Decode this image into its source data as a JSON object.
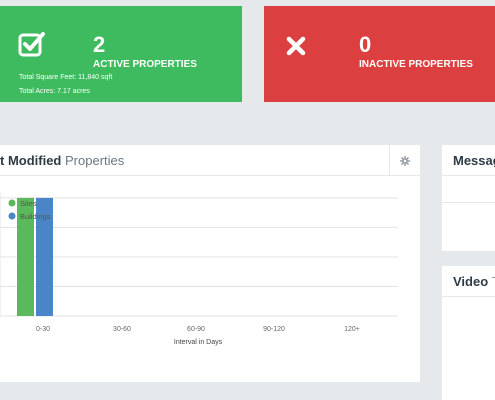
{
  "stats": {
    "active": {
      "count": "2",
      "label": "ACTIVE PROPERTIES",
      "sqft": "Total Square Feet: 11,840 sqft",
      "acres": "Total Acres: 7.17 acres",
      "color": "#3dbb5e",
      "icon": "checkbox-icon"
    },
    "inactive": {
      "count": "0",
      "label": "INACTIVE PROPERTIES",
      "color": "#dc3f3f",
      "icon": "x-icon"
    }
  },
  "main_panel": {
    "title_bold": "t Modified",
    "title_light": "Properties",
    "settings_icon": "gear-icon"
  },
  "side_panels": {
    "messages_title": "Messag",
    "video_title_bold": "Video",
    "video_title_light": "T"
  },
  "chart_data": {
    "type": "bar",
    "categories": [
      "0-30",
      "30-60",
      "60-90",
      "90-120",
      "120+"
    ],
    "series": [
      {
        "name": "Sites",
        "values": [
          2,
          0,
          0,
          0,
          0
        ],
        "color": "#5cb85c"
      },
      {
        "name": "Buildings",
        "values": [
          2,
          0,
          0,
          0,
          0
        ],
        "color": "#4a86c7"
      }
    ],
    "xlabel": "Interval in Days",
    "ylim": [
      0,
      2.1
    ],
    "legend": "top-left",
    "grid": true
  }
}
